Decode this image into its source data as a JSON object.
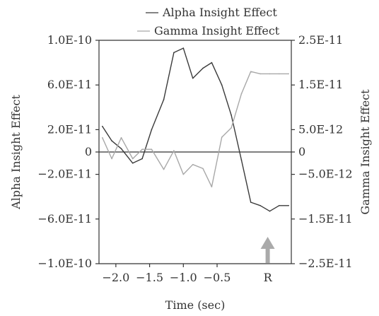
{
  "chart_data": {
    "type": "line",
    "xlabel": "Time (sec)",
    "ylabel_left": "Alpha Insight Effect",
    "ylabel_right": "Gamma Insight Effect",
    "xlim": [
      -2.25,
      0.6
    ],
    "ylim_left": [
      -1e-10,
      1e-10
    ],
    "ylim_right": [
      -2.5e-11,
      2.5e-11
    ],
    "x_ticks": [
      {
        "value": -2.0,
        "label": "−2.0"
      },
      {
        "value": -1.5,
        "label": "−1.5"
      },
      {
        "value": -1.0,
        "label": "−1.0"
      },
      {
        "value": -0.5,
        "label": "−0.5"
      }
    ],
    "y_ticks_left": [
      {
        "value": 1e-10,
        "label": "1.0E-10"
      },
      {
        "value": 6e-11,
        "label": "6.0E-11"
      },
      {
        "value": 2e-11,
        "label": "2.0E-11"
      },
      {
        "value": 0,
        "label": "0"
      },
      {
        "value": -2e-11,
        "label": "−2.0E-11"
      },
      {
        "value": -6e-11,
        "label": "−6.0E-11"
      },
      {
        "value": -1e-10,
        "label": "−1.0E-10"
      }
    ],
    "y_ticks_right": [
      {
        "value": 2.5e-11,
        "label": "2.5E-11"
      },
      {
        "value": 1.5e-11,
        "label": "1.5E-11"
      },
      {
        "value": 5e-12,
        "label": "5.0E-12"
      },
      {
        "value": 0,
        "label": "0"
      },
      {
        "value": -5e-12,
        "label": "−5.0E-12"
      },
      {
        "value": -1.5e-11,
        "label": "−1.5E-11"
      },
      {
        "value": -2.5e-11,
        "label": "−2.5E-11"
      }
    ],
    "legend_position": "top-center",
    "grid": false,
    "zero_line": true,
    "series": [
      {
        "name": "Alpha Insight Effect",
        "axis": "left",
        "color": "#3a3a3a",
        "x": [
          -2.2,
          -2.06,
          -1.92,
          -1.75,
          -1.61,
          -1.47,
          -1.29,
          -1.14,
          -1.0,
          -0.86,
          -0.71,
          -0.58,
          -0.43,
          -0.29,
          -0.14,
          0.0,
          0.14,
          0.28,
          0.42,
          0.56
        ],
        "y": [
          2.3e-11,
          1e-11,
          3e-12,
          -1e-11,
          -6e-12,
          2e-11,
          4.7e-11,
          8.9e-11,
          9.3e-11,
          6.6e-11,
          7.5e-11,
          8e-11,
          6e-11,
          3.3e-11,
          -7e-12,
          -4.5e-11,
          -4.8e-11,
          -5.3e-11,
          -4.8e-11,
          -4.8e-11
        ]
      },
      {
        "name": "Gamma Insight Effect",
        "axis": "right",
        "color": "#a8a8a8",
        "x": [
          -2.2,
          -2.06,
          -1.92,
          -1.75,
          -1.61,
          -1.47,
          -1.29,
          -1.14,
          -1.0,
          -0.86,
          -0.71,
          -0.58,
          -0.43,
          -0.29,
          -0.14,
          0.0,
          0.14,
          0.28,
          0.42,
          0.56
        ],
        "y": [
          3.2e-12,
          -1.5e-12,
          3.2e-12,
          -1.5e-12,
          6e-13,
          6e-13,
          -3.9e-12,
          3e-13,
          -5e-12,
          -2.8e-12,
          -3.7e-12,
          -7.8e-12,
          3.3e-12,
          5.4e-12,
          1.3e-11,
          1.8e-11,
          1.75e-11,
          1.75e-11,
          1.75e-11,
          1.75e-11
        ]
      }
    ],
    "annotations": [
      {
        "text": "R",
        "x": 0.25,
        "marker": "up-arrow",
        "color": "#aaaaaa"
      }
    ]
  }
}
